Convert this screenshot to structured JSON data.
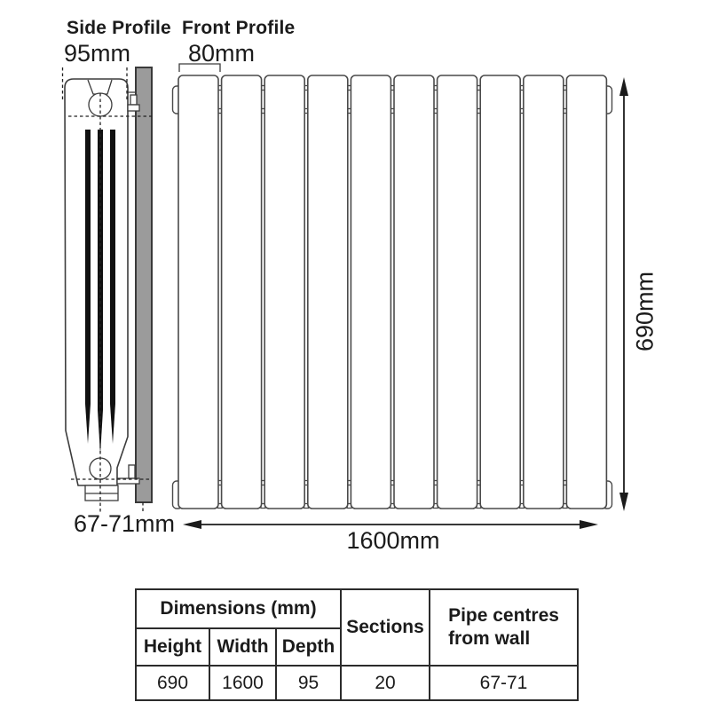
{
  "diagram": {
    "side_profile": {
      "title": "Side Profile",
      "depth_label": "95mm",
      "pipe_centres_label": "67-71mm"
    },
    "front_profile": {
      "title": "Front Profile",
      "section_width_label": "80mm",
      "width_label": "1600mm",
      "height_label": "690mm",
      "visible_panels": 10
    }
  },
  "spec_table": {
    "headers": {
      "dimensions": "Dimensions (mm)",
      "height": "Height",
      "width": "Width",
      "depth": "Depth",
      "sections": "Sections",
      "pipe_centres": "Pipe centres\nfrom wall"
    },
    "values": {
      "height": "690",
      "width": "1600",
      "depth": "95",
      "sections": "20",
      "pipe_centres": "67-71"
    }
  },
  "colors": {
    "line_dark": "#1f1f1f",
    "line_medium": "#4a4a4a",
    "wall_bar_fill": "#9b9b9b",
    "text": "#1b1b1b",
    "background": "#ffffff"
  }
}
